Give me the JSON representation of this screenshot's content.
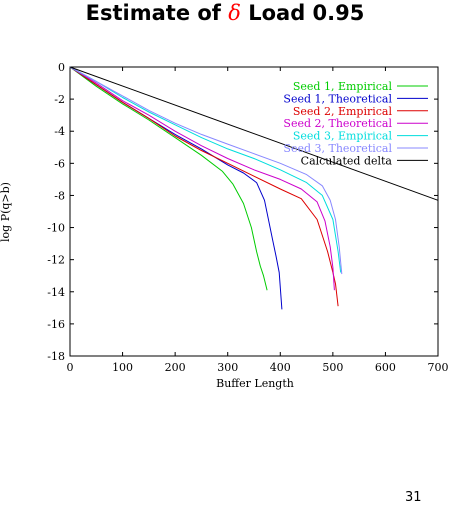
{
  "page": {
    "title_prefix": "Estimate of ",
    "title_symbol": "δ",
    "title_suffix": " Load 0.95",
    "page_number": "31"
  },
  "chart_data": {
    "type": "line",
    "xlabel": "Buffer Length",
    "ylabel": "log P(q>b)",
    "xlim": [
      0,
      700
    ],
    "ylim": [
      -18,
      0
    ],
    "xticks": [
      0,
      100,
      200,
      300,
      400,
      500,
      600,
      700
    ],
    "yticks": [
      0,
      -2,
      -4,
      -6,
      -8,
      -10,
      -12,
      -14,
      -16,
      -18
    ],
    "grid": false,
    "legend_position": "top-right",
    "series": [
      {
        "name": "Seed 1, Empirical",
        "color": "#00cc00",
        "x": [
          0,
          50,
          100,
          150,
          200,
          250,
          290,
          310,
          330,
          345,
          355,
          362,
          368,
          375
        ],
        "y": [
          0,
          -1.2,
          -2.3,
          -3.3,
          -4.4,
          -5.5,
          -6.5,
          -7.3,
          -8.5,
          -10.0,
          -11.5,
          -12.4,
          -13.0,
          -13.9
        ]
      },
      {
        "name": "Seed 1, Theoretical",
        "color": "#0000cc",
        "x": [
          0,
          50,
          100,
          150,
          200,
          250,
          300,
          330,
          355,
          370,
          385,
          392,
          398,
          403
        ],
        "y": [
          0,
          -1.1,
          -2.2,
          -3.2,
          -4.2,
          -5.1,
          -6.1,
          -6.6,
          -7.2,
          -8.3,
          -10.7,
          -11.8,
          -12.8,
          -15.1
        ]
      },
      {
        "name": "Seed 2, Empirical",
        "color": "#dd0000",
        "x": [
          0,
          50,
          100,
          150,
          200,
          250,
          300,
          350,
          400,
          440,
          470,
          490,
          500,
          505,
          510
        ],
        "y": [
          0,
          -1.1,
          -2.2,
          -3.2,
          -4.3,
          -5.2,
          -6.0,
          -6.8,
          -7.6,
          -8.2,
          -9.5,
          -11.5,
          -12.8,
          -13.5,
          -14.9
        ]
      },
      {
        "name": "Seed 2, Theoretical",
        "color": "#cc00cc",
        "x": [
          0,
          50,
          100,
          150,
          200,
          250,
          300,
          350,
          400,
          440,
          470,
          485,
          495,
          500,
          503
        ],
        "y": [
          0,
          -1.0,
          -2.1,
          -3.0,
          -4.0,
          -4.9,
          -5.7,
          -6.4,
          -7.0,
          -7.6,
          -8.4,
          -9.6,
          -11.2,
          -12.5,
          -13.9
        ]
      },
      {
        "name": "Seed 3, Empirical",
        "color": "#00dddd",
        "x": [
          0,
          50,
          100,
          150,
          200,
          250,
          300,
          350,
          400,
          450,
          480,
          500,
          510,
          515
        ],
        "y": [
          0,
          -0.9,
          -1.9,
          -2.8,
          -3.6,
          -4.4,
          -5.1,
          -5.7,
          -6.4,
          -7.2,
          -8.0,
          -9.5,
          -11.5,
          -12.8
        ]
      },
      {
        "name": "Seed 3, Theoretical",
        "color": "#8888ff",
        "x": [
          0,
          50,
          100,
          150,
          200,
          250,
          300,
          350,
          400,
          450,
          480,
          495,
          505,
          512,
          517
        ],
        "y": [
          0,
          -0.9,
          -1.8,
          -2.7,
          -3.5,
          -4.2,
          -4.8,
          -5.4,
          -6.0,
          -6.7,
          -7.4,
          -8.3,
          -9.5,
          -11.2,
          -12.9
        ]
      },
      {
        "name": "Calculated delta",
        "color": "#000000",
        "x": [
          0,
          700
        ],
        "y": [
          0,
          -8.3
        ]
      }
    ]
  }
}
